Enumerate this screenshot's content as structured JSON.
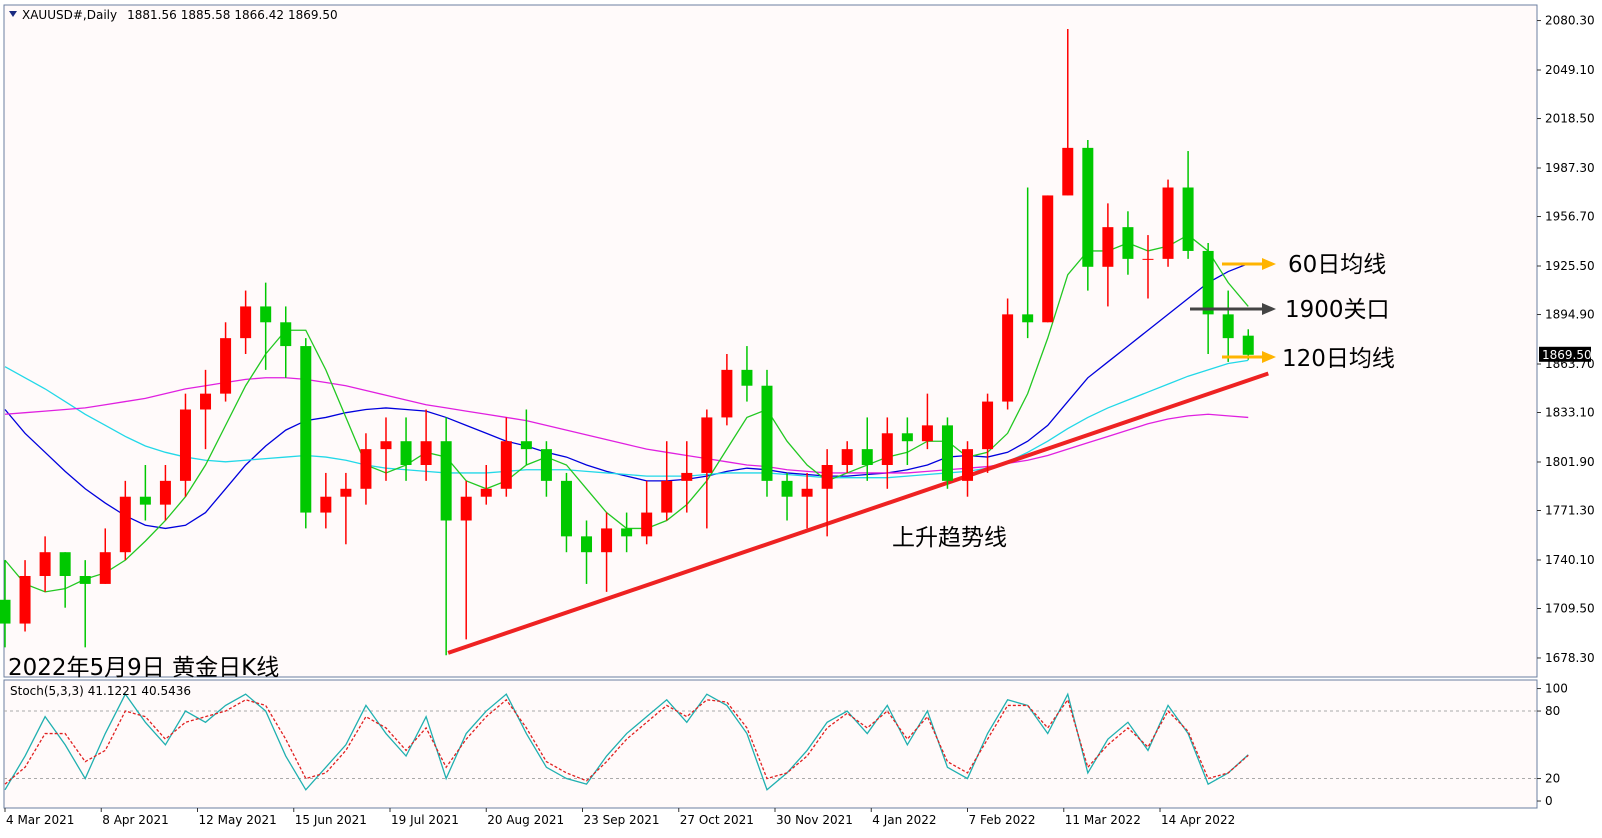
{
  "chart_data": {
    "type": "candlestick",
    "header": "XAUUSD#,Daily",
    "title": "2022年5月9日 黄金日K线",
    "last_price_label": "1869.50",
    "up_color": "#ff0000",
    "down_color": "#00c800",
    "xlim": [
      -0.05,
      76.4
    ],
    "ylim": [
      1666.3,
      2090.1
    ],
    "xticks": [
      {
        "value": 0,
        "label": "4 Mar 2021"
      },
      {
        "value": 4.8,
        "label": "8 Apr 2021"
      },
      {
        "value": 9.6,
        "label": "12 May 2021"
      },
      {
        "value": 14.4,
        "label": "15 Jun 2021"
      },
      {
        "value": 19.2,
        "label": "19 Jul 2021"
      },
      {
        "value": 24,
        "label": "20 Aug 2021"
      },
      {
        "value": 28.8,
        "label": "23 Sep 2021"
      },
      {
        "value": 33.6,
        "label": "27 Oct 2021"
      },
      {
        "value": 38.4,
        "label": "30 Nov 2021"
      },
      {
        "value": 43.2,
        "label": "4 Jan 2022"
      },
      {
        "value": 48,
        "label": "7 Feb 2022"
      },
      {
        "value": 52.8,
        "label": "11 Mar 2022"
      },
      {
        "value": 57.6,
        "label": "14 Apr 2022"
      }
    ],
    "yticks": [
      {
        "value": 2080.3,
        "label": "2080.30"
      },
      {
        "value": 2049.1,
        "label": "2049.10"
      },
      {
        "value": 2018.5,
        "label": "2018.50"
      },
      {
        "value": 1987.3,
        "label": "1987.30"
      },
      {
        "value": 1956.7,
        "label": "1956.70"
      },
      {
        "value": 1925.5,
        "label": "1925.50"
      },
      {
        "value": 1894.9,
        "label": "1894.90"
      },
      {
        "value": 1863.7,
        "label": "1863.70"
      },
      {
        "value": 1833.1,
        "label": "1833.10"
      },
      {
        "value": 1801.9,
        "label": "1801.90"
      },
      {
        "value": 1771.3,
        "label": "1771.30"
      },
      {
        "value": 1740.1,
        "label": "1740.10"
      },
      {
        "value": 1709.5,
        "label": "1709.50"
      },
      {
        "value": 1678.3,
        "label": "1678.30"
      }
    ],
    "candles": {
      "open": [
        1715,
        1700,
        1730,
        1745,
        1730,
        1725,
        1745,
        1780,
        1775,
        1790,
        1835,
        1845,
        1880,
        1900,
        1890,
        1875,
        1770,
        1780,
        1785,
        1810,
        1815,
        1800,
        1815,
        1765,
        1780,
        1785,
        1815,
        1810,
        1790,
        1755,
        1745,
        1760,
        1755,
        1770,
        1790,
        1795,
        1830,
        1860,
        1850,
        1790,
        1780,
        1785,
        1800,
        1810,
        1800,
        1820,
        1815,
        1825,
        1790,
        1810,
        1840,
        1895,
        1890,
        1970,
        2000,
        1925,
        1950,
        1930,
        1930,
        1975,
        1935,
        1895,
        1881.56
      ],
      "high": [
        1740,
        1740,
        1755,
        1745,
        1740,
        1760,
        1790,
        1800,
        1800,
        1845,
        1860,
        1890,
        1910,
        1915,
        1900,
        1880,
        1795,
        1795,
        1820,
        1830,
        1830,
        1835,
        1830,
        1790,
        1800,
        1830,
        1835,
        1815,
        1795,
        1765,
        1770,
        1770,
        1790,
        1815,
        1815,
        1835,
        1870,
        1875,
        1860,
        1795,
        1795,
        1810,
        1815,
        1830,
        1830,
        1830,
        1845,
        1830,
        1815,
        1845,
        1905,
        1975,
        1970,
        2075,
        2005,
        1965,
        1960,
        1945,
        1980,
        1998,
        1940,
        1910,
        1885.58
      ],
      "low": [
        1685,
        1695,
        1720,
        1710,
        1685,
        1725,
        1740,
        1765,
        1765,
        1780,
        1810,
        1840,
        1870,
        1860,
        1855,
        1760,
        1760,
        1750,
        1775,
        1790,
        1790,
        1790,
        1680,
        1690,
        1775,
        1780,
        1800,
        1780,
        1745,
        1725,
        1720,
        1745,
        1750,
        1765,
        1770,
        1760,
        1825,
        1840,
        1780,
        1765,
        1760,
        1755,
        1795,
        1790,
        1785,
        1800,
        1810,
        1785,
        1780,
        1795,
        1835,
        1880,
        1890,
        1970,
        1910,
        1900,
        1920,
        1905,
        1925,
        1930,
        1870,
        1865,
        1866.42
      ],
      "close": [
        1700,
        1730,
        1745,
        1730,
        1725,
        1745,
        1780,
        1775,
        1790,
        1835,
        1845,
        1880,
        1900,
        1890,
        1875,
        1770,
        1780,
        1785,
        1810,
        1815,
        1800,
        1815,
        1765,
        1780,
        1785,
        1815,
        1810,
        1790,
        1755,
        1745,
        1760,
        1755,
        1770,
        1790,
        1795,
        1830,
        1860,
        1850,
        1790,
        1780,
        1785,
        1800,
        1810,
        1800,
        1820,
        1815,
        1825,
        1790,
        1810,
        1840,
        1895,
        1890,
        1970,
        2000,
        1925,
        1950,
        1930,
        1930,
        1975,
        1935,
        1895,
        1880,
        1869.5
      ]
    },
    "series": [
      {
        "color": "#0000dd",
        "values": [
          1835,
          1820,
          1808,
          1796,
          1785,
          1776,
          1768,
          1762,
          1760,
          1762,
          1770,
          1785,
          1800,
          1812,
          1822,
          1828,
          1830,
          1833,
          1835,
          1836,
          1835,
          1834,
          1830,
          1825,
          1820,
          1815,
          1812,
          1808,
          1805,
          1800,
          1796,
          1793,
          1790,
          1790,
          1791,
          1793,
          1796,
          1798,
          1797,
          1795,
          1794,
          1793,
          1793,
          1794,
          1795,
          1797,
          1800,
          1805,
          1806,
          1805,
          1808,
          1815,
          1825,
          1840,
          1855,
          1865,
          1875,
          1885,
          1895,
          1905,
          1915,
          1922,
          1927
        ]
      },
      {
        "color": "#22d8e8",
        "values": [
          1862,
          1855,
          1848,
          1840,
          1832,
          1825,
          1818,
          1812,
          1808,
          1805,
          1803,
          1802,
          1803,
          1804,
          1805,
          1806,
          1805,
          1803,
          1800,
          1798,
          1797,
          1796,
          1795,
          1795,
          1795,
          1796,
          1797,
          1797,
          1797,
          1796,
          1795,
          1794,
          1793,
          1793,
          1793,
          1794,
          1795,
          1795,
          1795,
          1794,
          1793,
          1792,
          1792,
          1792,
          1792,
          1793,
          1794,
          1795,
          1796,
          1798,
          1802,
          1808,
          1815,
          1823,
          1830,
          1836,
          1841,
          1846,
          1851,
          1856,
          1860,
          1864,
          1866
        ]
      },
      {
        "color": "#e020e0",
        "values": [
          1832,
          1833,
          1834,
          1835,
          1836,
          1838,
          1840,
          1842,
          1845,
          1848,
          1850,
          1852,
          1854,
          1855,
          1855,
          1854,
          1852,
          1850,
          1847,
          1844,
          1841,
          1838,
          1836,
          1834,
          1832,
          1830,
          1828,
          1825,
          1822,
          1819,
          1816,
          1813,
          1810,
          1808,
          1806,
          1804,
          1802,
          1800,
          1799,
          1797,
          1796,
          1795,
          1795,
          1795,
          1795,
          1795,
          1796,
          1797,
          1798,
          1799,
          1801,
          1803,
          1806,
          1810,
          1814,
          1818,
          1822,
          1826,
          1829,
          1831,
          1832,
          1831,
          1830
        ]
      },
      {
        "color": "#22c822",
        "values": [
          1740,
          1725,
          1720,
          1722,
          1728,
          1732,
          1740,
          1752,
          1765,
          1780,
          1800,
          1825,
          1850,
          1870,
          1885,
          1885,
          1860,
          1830,
          1800,
          1795,
          1800,
          1808,
          1805,
          1790,
          1785,
          1790,
          1800,
          1805,
          1800,
          1785,
          1770,
          1760,
          1760,
          1765,
          1775,
          1790,
          1810,
          1830,
          1835,
          1815,
          1800,
          1790,
          1795,
          1800,
          1805,
          1808,
          1815,
          1815,
          1805,
          1808,
          1820,
          1845,
          1880,
          1920,
          1935,
          1935,
          1940,
          1935,
          1938,
          1945,
          1935,
          1915,
          1900
        ]
      }
    ],
    "trendline": {
      "color": "#ee2222",
      "x": [
        22.1,
        63.0
      ],
      "y": [
        1681.5,
        1857.7
      ]
    },
    "annotations": [
      "60日均线",
      "1900关口",
      "120日均线",
      "上升趋势线"
    ],
    "stoch": {
      "title": "Stoch(5,3,3)",
      "ylim": [
        -6.2,
        107.6
      ],
      "yticks": [
        100,
        80,
        20,
        0
      ],
      "k_color": "#20b0b0",
      "d_color": "#e02020",
      "k": [
        10,
        40,
        75,
        50,
        20,
        60,
        95,
        70,
        50,
        80,
        70,
        85,
        95,
        80,
        40,
        10,
        30,
        50,
        85,
        60,
        40,
        75,
        20,
        60,
        80,
        95,
        60,
        30,
        20,
        15,
        40,
        60,
        75,
        90,
        70,
        95,
        85,
        60,
        10,
        25,
        45,
        70,
        80,
        60,
        85,
        50,
        80,
        30,
        20,
        60,
        90,
        85,
        60,
        95,
        25,
        55,
        70,
        45,
        85,
        60,
        15,
        25,
        41.1221
      ],
      "d": [
        15,
        30,
        60,
        60,
        35,
        45,
        80,
        75,
        55,
        70,
        75,
        80,
        90,
        85,
        55,
        20,
        25,
        45,
        75,
        65,
        45,
        65,
        30,
        55,
        75,
        90,
        65,
        35,
        25,
        18,
        35,
        55,
        70,
        85,
        75,
        90,
        88,
        65,
        20,
        25,
        40,
        65,
        78,
        65,
        80,
        55,
        75,
        35,
        25,
        55,
        85,
        85,
        65,
        90,
        30,
        50,
        65,
        48,
        80,
        62,
        20,
        25,
        40.5436
      ]
    }
  }
}
